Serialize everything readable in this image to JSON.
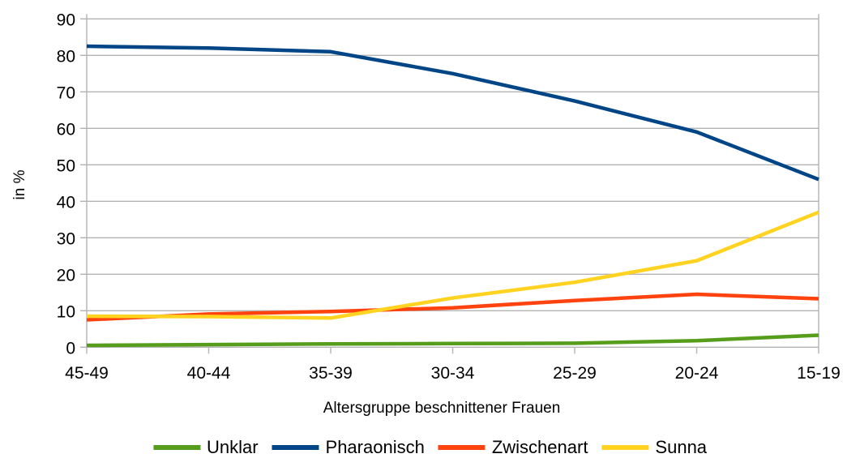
{
  "chart_data": {
    "type": "line",
    "title": "",
    "xlabel": "Altersgruppe beschnittener Frauen",
    "ylabel": "in %",
    "ylim": [
      0,
      90
    ],
    "ytick_step": 10,
    "grid": true,
    "legend_position": "bottom",
    "categories": [
      "45-49",
      "40-44",
      "35-39",
      "30-34",
      "25-29",
      "20-24",
      "15-19"
    ],
    "series": [
      {
        "name": "Unklar",
        "color": "#579D1C",
        "values": [
          0.5,
          0.7,
          0.9,
          1.0,
          1.1,
          1.8,
          3.3
        ]
      },
      {
        "name": "Pharaonisch",
        "color": "#004586",
        "values": [
          82.5,
          82.0,
          81.0,
          75.0,
          67.5,
          59.0,
          46.0
        ]
      },
      {
        "name": "Zwischenart",
        "color": "#FF420E",
        "values": [
          7.5,
          9.1,
          9.8,
          10.8,
          12.8,
          14.5,
          13.3
        ]
      },
      {
        "name": "Sunna",
        "color": "#FFD320",
        "values": [
          8.5,
          8.4,
          8.0,
          13.5,
          17.8,
          23.7,
          37.0
        ]
      }
    ],
    "axis_color": "#B3B3B3",
    "text_color": "#000000",
    "background": "#FFFFFF"
  }
}
